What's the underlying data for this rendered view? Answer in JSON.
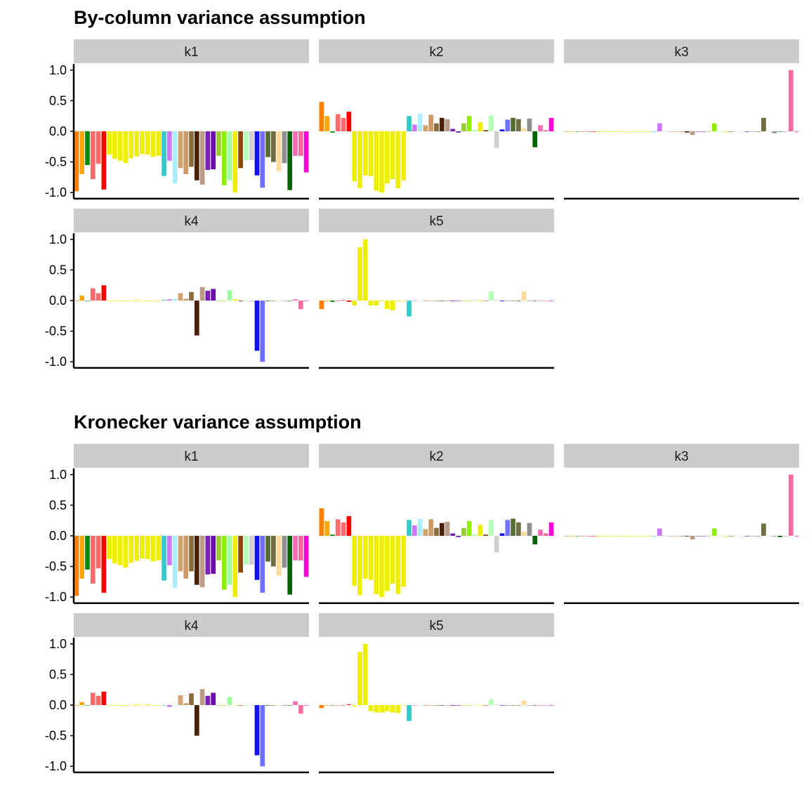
{
  "colors": {
    "strip_background": "#cccccc",
    "axis": "#000000",
    "background": "#ffffff"
  },
  "chart_data": [
    {
      "type": "bar",
      "title": "By-column variance assumption",
      "ylim": [
        -1.1,
        1.1
      ],
      "yticks": [
        1.0,
        0.5,
        0.0,
        -0.5,
        -1.0
      ],
      "ytick_labels": [
        "1.0",
        "0.5",
        "0.0",
        "-0.5",
        "-1.0"
      ],
      "bar_colors": [
        "#FF7F00",
        "#FFA500",
        "#008B00",
        "#FF6A6A",
        "#FF6A6A",
        "#FF0000",
        "#EEEE00",
        "#EEEE00",
        "#EEEE00",
        "#EEEE00",
        "#EEEE00",
        "#EEEE00",
        "#EEEE00",
        "#EEEE00",
        "#EEEE00",
        "#EEEE00",
        "#36C9C9",
        "#CC77FF",
        "#AAEEFF",
        "#D2A36C",
        "#CD9B65",
        "#8B6B3A",
        "#4A2008",
        "#BC9A86",
        "#7A1FBF",
        "#6A0DAD",
        "#9ACD32",
        "#90EE00",
        "#A0FFA0",
        "#EEEE00",
        "#8B4513",
        "#B8FFB8",
        "#CFCFCF",
        "#1010FF",
        "#7070FF",
        "#556B2F",
        "#6E6E40",
        "#FFDA9A",
        "#8F8F8F",
        "#006400",
        "#FF69B4",
        "#FF6A9A",
        "#FF00D7"
      ],
      "facets": [
        {
          "label": "k1",
          "values": [
            -0.98,
            -0.7,
            -0.55,
            -0.78,
            -0.53,
            -0.95,
            -0.38,
            -0.45,
            -0.48,
            -0.52,
            -0.44,
            -0.41,
            -0.37,
            -0.38,
            -0.42,
            -0.4,
            -0.73,
            -0.48,
            -0.85,
            -0.6,
            -0.7,
            -0.58,
            -0.8,
            -0.87,
            -0.63,
            -0.62,
            -0.4,
            -0.88,
            -0.8,
            -1.0,
            -0.6,
            -0.47,
            -0.47,
            -0.72,
            -0.92,
            -0.42,
            -0.5,
            -0.65,
            -0.52,
            -0.96,
            -0.4,
            -0.4,
            -0.67
          ]
        },
        {
          "label": "k2",
          "values": [
            0.48,
            0.25,
            -0.02,
            0.28,
            0.22,
            0.32,
            -0.82,
            -0.93,
            -0.72,
            -0.73,
            -0.97,
            -1.0,
            -0.85,
            -0.78,
            -0.93,
            -0.8,
            0.25,
            0.11,
            0.29,
            0.1,
            0.27,
            0.13,
            0.22,
            0.2,
            0.04,
            -0.02,
            0.13,
            0.25,
            0.02,
            0.15,
            0.02,
            0.26,
            -0.27,
            0.03,
            0.19,
            0.22,
            0.2,
            0.05,
            0.21,
            -0.26,
            0.1,
            0.02,
            0.22
          ]
        },
        {
          "label": "k3",
          "values": [
            0,
            0,
            0,
            0,
            -0.01,
            0,
            0,
            0,
            0,
            0,
            0,
            0,
            0,
            0,
            0,
            0,
            0,
            0.13,
            0,
            0,
            0,
            0,
            -0.02,
            -0.06,
            0,
            0,
            0,
            0.13,
            0,
            0,
            0,
            0,
            0,
            0,
            0,
            0,
            0.22,
            0,
            -0.03,
            0,
            0,
            1.0,
            0
          ]
        },
        {
          "label": "k4",
          "values": [
            0,
            0.08,
            0,
            0.2,
            0.12,
            0.25,
            0,
            0,
            0,
            0,
            0,
            0.01,
            0,
            0,
            0,
            0,
            0.01,
            0.02,
            0.03,
            0.12,
            0.03,
            0.14,
            -0.57,
            0.22,
            0.16,
            0.19,
            0,
            0,
            0.17,
            0.02,
            -0.01,
            0,
            -0.02,
            -0.82,
            -1.0,
            -0.01,
            0,
            0,
            0,
            0,
            0.02,
            -0.14,
            0
          ]
        },
        {
          "label": "k5",
          "values": [
            -0.14,
            -0.01,
            -0.02,
            -0.01,
            0.01,
            -0.02,
            -0.08,
            0.87,
            1.0,
            -0.08,
            -0.08,
            -0.01,
            -0.14,
            -0.16,
            -0.01,
            0,
            -0.26,
            0,
            0,
            -0.01,
            0,
            0,
            0,
            -0.01,
            -0.01,
            0,
            0,
            0,
            0.01,
            -0.01,
            0,
            0.15,
            0.01,
            -0.01,
            0,
            0,
            -0.01,
            0.15,
            0,
            0,
            0,
            0,
            0
          ]
        }
      ]
    },
    {
      "type": "bar",
      "title": "Kronecker variance assumption",
      "ylim": [
        -1.1,
        1.1
      ],
      "yticks": [
        1.0,
        0.5,
        0.0,
        -0.5,
        -1.0
      ],
      "ytick_labels": [
        "1.0",
        "0.5",
        "0.0",
        "-0.5",
        "-1.0"
      ],
      "bar_colors": [
        "#FF7F00",
        "#FFA500",
        "#008B00",
        "#FF6A6A",
        "#FF6A6A",
        "#FF0000",
        "#EEEE00",
        "#EEEE00",
        "#EEEE00",
        "#EEEE00",
        "#EEEE00",
        "#EEEE00",
        "#EEEE00",
        "#EEEE00",
        "#EEEE00",
        "#EEEE00",
        "#36C9C9",
        "#CC77FF",
        "#AAEEFF",
        "#D2A36C",
        "#CD9B65",
        "#8B6B3A",
        "#4A2008",
        "#BC9A86",
        "#7A1FBF",
        "#6A0DAD",
        "#9ACD32",
        "#90EE00",
        "#A0FFA0",
        "#EEEE00",
        "#8B4513",
        "#B8FFB8",
        "#CFCFCF",
        "#1010FF",
        "#7070FF",
        "#556B2F",
        "#6E6E40",
        "#FFDA9A",
        "#8F8F8F",
        "#006400",
        "#FF69B4",
        "#FF6A9A",
        "#FF00D7"
      ],
      "facets": [
        {
          "label": "k1",
          "values": [
            -0.98,
            -0.7,
            -0.55,
            -0.78,
            -0.53,
            -0.93,
            -0.38,
            -0.45,
            -0.48,
            -0.52,
            -0.44,
            -0.41,
            -0.37,
            -0.38,
            -0.42,
            -0.4,
            -0.73,
            -0.48,
            -0.85,
            -0.58,
            -0.7,
            -0.58,
            -0.8,
            -0.84,
            -0.63,
            -0.62,
            -0.4,
            -0.88,
            -0.8,
            -1.0,
            -0.6,
            -0.47,
            -0.47,
            -0.72,
            -0.93,
            -0.42,
            -0.5,
            -0.65,
            -0.52,
            -0.96,
            -0.4,
            -0.4,
            -0.67
          ]
        },
        {
          "label": "k2",
          "values": [
            0.45,
            0.24,
            0.02,
            0.27,
            0.22,
            0.32,
            -0.82,
            -0.97,
            -0.7,
            -0.72,
            -0.95,
            -1.0,
            -0.9,
            -0.78,
            -0.95,
            -0.83,
            0.26,
            0.17,
            0.28,
            0.11,
            0.27,
            0.13,
            0.21,
            0.23,
            0.04,
            -0.02,
            0.13,
            0.24,
            0.02,
            0.18,
            0.02,
            0.26,
            -0.27,
            0.04,
            0.26,
            0.28,
            0.22,
            0.07,
            0.21,
            -0.14,
            0.1,
            0.04,
            0.22
          ]
        },
        {
          "label": "k3",
          "values": [
            0,
            0,
            0,
            0,
            -0.01,
            0,
            0,
            0,
            0,
            0,
            0,
            0,
            0,
            0,
            0,
            0,
            0,
            0.12,
            -0.01,
            0,
            0,
            0,
            -0.01,
            -0.06,
            0,
            0,
            0,
            0.12,
            0,
            0,
            0,
            0,
            0,
            0,
            0,
            0,
            0.2,
            0,
            -0.01,
            -0.02,
            0,
            1.0,
            0
          ]
        },
        {
          "label": "k4",
          "values": [
            0,
            0.05,
            0,
            0.2,
            0.15,
            0.22,
            0,
            0,
            0,
            0,
            0,
            0.01,
            0,
            0.01,
            0,
            0,
            0,
            -0.03,
            0,
            0.16,
            0.03,
            0.19,
            -0.5,
            0.26,
            0.15,
            0.2,
            0,
            0,
            0.13,
            0,
            0,
            0,
            -0.01,
            -0.82,
            -1.0,
            -0.01,
            0,
            0,
            -0.01,
            0,
            0.06,
            -0.14,
            0
          ]
        },
        {
          "label": "k5",
          "values": [
            -0.05,
            0,
            0,
            0,
            0,
            0.01,
            -0.02,
            0.87,
            1.0,
            -0.1,
            -0.12,
            -0.12,
            -0.1,
            -0.12,
            -0.13,
            0,
            -0.26,
            0,
            0,
            -0.01,
            0,
            0,
            0,
            0,
            -0.01,
            0,
            0,
            0,
            0,
            0,
            0,
            0.09,
            0.01,
            0,
            0,
            0,
            0,
            0.07,
            0,
            0,
            0,
            0,
            0
          ]
        }
      ]
    }
  ]
}
